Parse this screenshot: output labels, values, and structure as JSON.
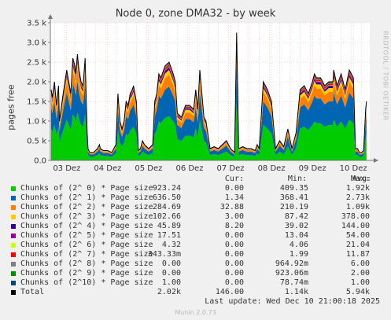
{
  "chart_data": {
    "type": "area",
    "title": "Node 0, zone DMA32 - by week",
    "ylabel": "pages free",
    "ylim": [
      0,
      3500
    ],
    "yticks": [
      0,
      500,
      1000,
      1500,
      2000,
      2500,
      3000,
      3500
    ],
    "ytick_labels": [
      "0.0",
      "0.5 k",
      "1.0 k",
      "1.5 k",
      "2.0 k",
      "2.5 k",
      "3.0 k",
      "3.5 k"
    ],
    "xlim": [
      0,
      7.8
    ],
    "x_ticks": [
      0.4,
      1.4,
      2.4,
      3.4,
      4.4,
      5.4,
      6.4,
      7.4
    ],
    "x_tick_labels": [
      "03 Dez",
      "04 Dez",
      "05 Dez",
      "06 Dez",
      "07 Dez",
      "08 Dez",
      "09 Dez",
      "10 Dez"
    ],
    "grid": true,
    "x": [
      0.02,
      0.05,
      0.1,
      0.15,
      0.2,
      0.22,
      0.3,
      0.4,
      0.5,
      0.55,
      0.6,
      0.62,
      0.66,
      0.7,
      0.75,
      0.8,
      0.85,
      0.9,
      0.92,
      0.96,
      1.0,
      1.05,
      1.1,
      1.15,
      1.2,
      1.22,
      1.3,
      1.4,
      1.5,
      1.55,
      1.6,
      1.65,
      1.7,
      1.75,
      1.8,
      1.85,
      1.9,
      1.95,
      2.0,
      2.03,
      2.1,
      2.15,
      2.2,
      2.25,
      2.3,
      2.4,
      2.45,
      2.5,
      2.55,
      2.6,
      2.65,
      2.7,
      2.8,
      2.9,
      3.0,
      3.05,
      3.1,
      3.2,
      3.3,
      3.4,
      3.5,
      3.55,
      3.6,
      3.65,
      3.7,
      3.75,
      3.8,
      3.9,
      4.0,
      4.1,
      4.2,
      4.3,
      4.4,
      4.5,
      4.55,
      4.6,
      4.7,
      4.8,
      4.9,
      5.0,
      5.05,
      5.1,
      5.2,
      5.3,
      5.4,
      5.5,
      5.6,
      5.7,
      5.8,
      5.9,
      6.0,
      6.1,
      6.2,
      6.3,
      6.4,
      6.45,
      6.5,
      6.6,
      6.7,
      6.8,
      6.9,
      6.92,
      7.0,
      7.1,
      7.2,
      7.3,
      7.4,
      7.45,
      7.5,
      7.55,
      7.6,
      7.65,
      7.7,
      7.72
    ],
    "series": [
      {
        "name": "Chunks of (2^ 0) * Page size",
        "color": "#00cc00"
      },
      {
        "name": "Chunks of (2^ 1) * Page size",
        "color": "#0066b3"
      },
      {
        "name": "Chunks of (2^ 2) * Page size",
        "color": "#ff8000"
      },
      {
        "name": "Chunks of (2^ 3) * Page size",
        "color": "#ffcc00"
      },
      {
        "name": "Chunks of (2^ 4) * Page size",
        "color": "#330099"
      },
      {
        "name": "Chunks of (2^ 5) * Page size",
        "color": "#990099"
      },
      {
        "name": "Chunks of (2^ 6) * Page size",
        "color": "#ccff00"
      },
      {
        "name": "Chunks of (2^ 7) * Page size",
        "color": "#ff0000"
      },
      {
        "name": "Chunks of (2^ 8) * Page size",
        "color": "#808080"
      },
      {
        "name": "Chunks of (2^ 9) * Page size",
        "color": "#008f00"
      },
      {
        "name": "Chunks of (2^10) * Page size",
        "color": "#00487d"
      },
      {
        "name": "Total",
        "color": "#000000"
      }
    ],
    "total": [
      1800,
      1600,
      2000,
      1400,
      1900,
      1000,
      1600,
      2300,
      1700,
      2600,
      2400,
      2200,
      2700,
      2300,
      2000,
      1900,
      2600,
      700,
      300,
      200,
      200,
      200,
      250,
      300,
      400,
      300,
      250,
      250,
      200,
      300,
      400,
      1700,
      1000,
      800,
      1000,
      1500,
      1400,
      1700,
      1800,
      1900,
      1500,
      250,
      300,
      500,
      400,
      300,
      350,
      400,
      1500,
      1700,
      2200,
      2100,
      2400,
      2500,
      2200,
      2000,
      1200,
      1100,
      1400,
      1400,
      1300,
      1800,
      1300,
      2300,
      1700,
      1100,
      1000,
      300,
      350,
      300,
      400,
      500,
      300,
      200,
      3250,
      300,
      350,
      300,
      300,
      250,
      400,
      300,
      2000,
      1800,
      1500,
      300,
      500,
      350,
      800,
      300,
      700,
      1800,
      1900,
      1700,
      2000,
      2200,
      2100,
      2100,
      1900,
      2000,
      2000,
      2300,
      1900,
      2200,
      1800,
      2300,
      2100,
      300,
      300,
      200,
      200,
      250,
      1300,
      1500,
      1700,
      1900
    ],
    "layer_fractions": [
      0.45,
      0.3,
      0.12,
      0.05,
      0.025,
      0.008,
      0.004,
      0.02,
      0.008,
      0.005,
      0.004
    ],
    "legend_header": [
      "Cur:",
      "Min:",
      "Avg:",
      "Max:"
    ],
    "legend_rows": [
      [
        "923.24",
        "0.00",
        "409.35",
        "1.92k"
      ],
      [
        "636.50",
        "1.34",
        "368.41",
        "2.73k"
      ],
      [
        "284.69",
        "32.88",
        "210.19",
        "1.09k"
      ],
      [
        "102.66",
        "3.00",
        "87.42",
        "378.00"
      ],
      [
        "45.89",
        "8.20",
        "39.02",
        "144.00"
      ],
      [
        "17.51",
        "0.00",
        "13.04",
        "54.00"
      ],
      [
        "4.32",
        "0.00",
        "4.06",
        "21.04"
      ],
      [
        "343.33m",
        "0.00",
        "1.99",
        "11.87"
      ],
      [
        "0.00",
        "0.00",
        "964.92m",
        "6.00"
      ],
      [
        "0.00",
        "0.00",
        "923.06m",
        "2.00"
      ],
      [
        "1.00",
        "0.00",
        "78.74m",
        "1.00"
      ],
      [
        "2.02k",
        "146.00",
        "1.14k",
        "5.94k"
      ]
    ],
    "last_update": "Last update: Wed Dec 10 21:00:18 2025",
    "side_label": "RRDTOOL / TOBI OETIKER",
    "version": "Munin 2.0.73"
  }
}
